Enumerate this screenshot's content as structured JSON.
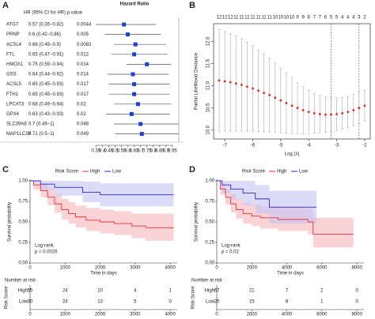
{
  "chart_data": [
    {
      "type": "forest",
      "label": "A",
      "title": "Hazard Ratio",
      "header": "HR (95% CI for HR) p.value",
      "categories": [
        "ATG7",
        "PRNP",
        "ACSL4",
        "FTL",
        "HMOX1",
        "GSS",
        "ACSL5",
        "FTH1",
        "LPCAT3",
        "GPX4",
        "SLC39A8",
        "MAP1LC3B"
      ],
      "values": [
        0.57,
        0.6,
        0.66,
        0.65,
        0.75,
        0.64,
        0.65,
        0.65,
        0.68,
        0.63,
        0.7,
        0.71
      ],
      "lower": [
        0.35,
        0.42,
        0.49,
        0.47,
        0.59,
        0.44,
        0.45,
        0.45,
        0.49,
        0.43,
        0.49,
        0.5
      ],
      "upper": [
        0.82,
        0.86,
        0.9,
        0.91,
        0.94,
        0.92,
        0.93,
        0.93,
        0.94,
        0.93,
        1,
        1
      ],
      "value_labels": [
        "0.57 (0.35−0.82)",
        "0.6 (0.42−0.86)",
        "0.66 (0.49−0.9)",
        "0.65 (0.47−0.91)",
        "0.75 (0.59−0.94)",
        "0.64 (0.44−0.92)",
        "0.65 (0.45−0.93)",
        "0.65 (0.45−0.93)",
        "0.68 (0.49−0.94)",
        "0.63 (0.43−0.93)",
        "0.7 (0.49−1)",
        "0.71 (0.5−1)"
      ],
      "p_values": [
        0.0044,
        0.005,
        0.0082,
        0.012,
        0.014,
        0.014,
        0.017,
        0.017,
        0.02,
        0.02,
        0.048,
        0.049
      ],
      "color": "#1f3fd6",
      "reference": 1,
      "xlim": [
        0.33,
        1.0
      ],
      "xticks": [
        0.35,
        0.4,
        0.45,
        0.5,
        0.55,
        0.6,
        0.65,
        0.7,
        0.75,
        0.8,
        0.85,
        0.9,
        0.95
      ]
    },
    {
      "type": "lasso_cv",
      "label": "B",
      "xlabel": "Log (λ)",
      "ylabel": "Partial Likelihood Deviance",
      "x": [
        -7.2,
        -7.0,
        -6.8,
        -6.6,
        -6.4,
        -6.2,
        -6.0,
        -5.8,
        -5.6,
        -5.4,
        -5.2,
        -5.0,
        -4.8,
        -4.6,
        -4.4,
        -4.2,
        -4.0,
        -3.8,
        -3.6,
        -3.4,
        -3.2,
        -3.0,
        -2.8,
        -2.6,
        -2.4,
        -2.2,
        -2.0
      ],
      "values": [
        11.12,
        11.1,
        11.08,
        11.05,
        11.02,
        10.98,
        10.94,
        10.89,
        10.84,
        10.79,
        10.73,
        10.67,
        10.61,
        10.55,
        10.5,
        10.45,
        10.41,
        10.38,
        10.36,
        10.35,
        10.35,
        10.36,
        10.38,
        10.41,
        10.45,
        10.5,
        10.55
      ],
      "error": [
        1.15,
        1.12,
        1.1,
        1.07,
        1.04,
        1.0,
        0.96,
        0.92,
        0.88,
        0.83,
        0.78,
        0.73,
        0.68,
        0.63,
        0.58,
        0.53,
        0.49,
        0.45,
        0.42,
        0.4,
        0.38,
        0.37,
        0.36,
        0.35,
        0.35,
        0.35,
        0.35
      ],
      "df": [
        12,
        12,
        12,
        11,
        11,
        11,
        11,
        11,
        11,
        11,
        10,
        10,
        10,
        10,
        9,
        9,
        8,
        7,
        7,
        6,
        5,
        5,
        4,
        4,
        4,
        3,
        2
      ],
      "vlines": [
        -3.2,
        -2.2
      ],
      "color": "#e8221c",
      "xlim": [
        -7.4,
        -1.8
      ],
      "xticks": [
        -7,
        -6,
        -5,
        -4,
        -3,
        -2
      ],
      "ylim": [
        9.8,
        12.4
      ],
      "yticks": [
        {
          "value": 10,
          "label": "10.0"
        },
        10.5,
        {
          "value": 11,
          "label": "11.0"
        },
        11.5,
        {
          "value": 12,
          "label": "12.0"
        }
      ]
    },
    {
      "type": "km",
      "label": "C",
      "legend_title": "Risk Score",
      "ylabel": "Survival probability",
      "xlabel": "Time in days",
      "annotation": [
        "Log-rank",
        "p = 0.0026"
      ],
      "risk_title": "Number at risk",
      "xlim": [
        0,
        4200
      ],
      "xticks": [
        0,
        1000,
        2000,
        3000,
        4000
      ],
      "ylim": [
        0,
        1
      ],
      "yticks": [
        {
          "value": 0,
          "label": "0.00"
        },
        {
          "value": 0.25,
          "label": "0.25"
        },
        {
          "value": 0.5,
          "label": "0.50"
        },
        {
          "value": 0.75,
          "label": "0.75"
        },
        {
          "value": 1,
          "label": "1.00"
        }
      ],
      "series": [
        {
          "name": "High",
          "color": "#e8323a",
          "band_color": "#f6b6bc",
          "x": [
            0,
            100,
            300,
            500,
            700,
            900,
            1100,
            1300,
            1600,
            2000,
            2400,
            2900,
            3300,
            4100
          ],
          "y": [
            1,
            0.95,
            0.88,
            0.8,
            0.72,
            0.65,
            0.6,
            0.56,
            0.52,
            0.5,
            0.48,
            0.45,
            0.43,
            0.43
          ],
          "lower": [
            1,
            0.89,
            0.8,
            0.7,
            0.61,
            0.53,
            0.48,
            0.43,
            0.39,
            0.36,
            0.34,
            0.3,
            0.27,
            0.27
          ],
          "upper": [
            1,
            1,
            0.97,
            0.91,
            0.84,
            0.78,
            0.74,
            0.7,
            0.67,
            0.65,
            0.63,
            0.6,
            0.6,
            0.6
          ],
          "at_risk": [
            55,
            24,
            10,
            4,
            1
          ]
        },
        {
          "name": "Low",
          "color": "#2a2ad6",
          "band_color": "#c4c4f4",
          "x": [
            0,
            300,
            700,
            1500,
            2000,
            2600,
            4100
          ],
          "y": [
            1,
            0.96,
            0.92,
            0.86,
            0.83,
            0.83,
            0.83
          ],
          "lower": [
            1,
            0.89,
            0.82,
            0.74,
            0.69,
            0.69,
            0.69
          ],
          "upper": [
            1,
            1,
            1,
            0.99,
            0.97,
            0.97,
            0.97
          ],
          "at_risk": [
            30,
            24,
            13,
            5,
            0
          ]
        }
      ]
    },
    {
      "type": "km",
      "label": "D",
      "legend_title": "Risk Score",
      "ylabel": "Survival probability",
      "xlabel": "Time in days",
      "annotation": [
        "Log-rank",
        "p = 0.02"
      ],
      "risk_title": "Number at risk",
      "xlim": [
        0,
        8400
      ],
      "xticks": [
        0,
        2000,
        4000,
        6000,
        8000
      ],
      "ylim": [
        0,
        1
      ],
      "yticks": [
        {
          "value": 0,
          "label": "0.00"
        },
        {
          "value": 0.25,
          "label": "0.25"
        },
        {
          "value": 0.5,
          "label": "0.50"
        },
        {
          "value": 0.75,
          "label": "0.75"
        },
        {
          "value": 1,
          "label": "1.00"
        }
      ],
      "series": [
        {
          "name": "High",
          "color": "#e8323a",
          "band_color": "#f6b6bc",
          "x": [
            0,
            200,
            500,
            800,
            1100,
            1500,
            2000,
            2500,
            3500,
            5200,
            5500,
            7800
          ],
          "y": [
            1,
            0.9,
            0.8,
            0.72,
            0.65,
            0.6,
            0.57,
            0.55,
            0.53,
            0.5,
            0.35,
            0.35
          ],
          "lower": [
            1,
            0.83,
            0.71,
            0.61,
            0.54,
            0.48,
            0.45,
            0.42,
            0.39,
            0.35,
            0.19,
            0.19
          ],
          "upper": [
            1,
            0.98,
            0.9,
            0.84,
            0.78,
            0.73,
            0.71,
            0.69,
            0.68,
            0.66,
            0.55,
            0.55
          ],
          "at_risk": [
            67,
            21,
            7,
            2,
            0
          ]
        },
        {
          "name": "Low",
          "color": "#2a2ad6",
          "band_color": "#c4c4f4",
          "x": [
            0,
            300,
            800,
            1500,
            2200,
            3000,
            5700
          ],
          "y": [
            1,
            0.95,
            0.9,
            0.85,
            0.78,
            0.68,
            0.68
          ],
          "lower": [
            1,
            0.85,
            0.77,
            0.7,
            0.6,
            0.48,
            0.48
          ],
          "upper": [
            1,
            1,
            1,
            1,
            0.95,
            0.88,
            0.88
          ],
          "at_risk": [
            20,
            15,
            8,
            1,
            0
          ]
        }
      ]
    }
  ]
}
